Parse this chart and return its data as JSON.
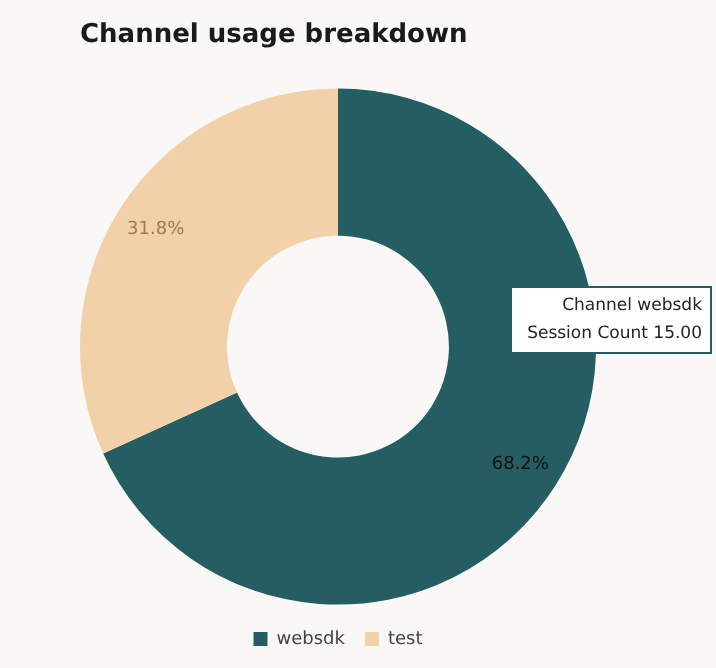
{
  "chart_data": {
    "type": "donut",
    "title": "Channel usage breakdown",
    "categories": [
      "websdk",
      "test"
    ],
    "values": [
      68.2,
      31.8
    ],
    "colors": [
      "#245e63",
      "#f3d1a8"
    ],
    "value_labels": [
      "68.2%",
      "31.8%"
    ],
    "legend": "bottom",
    "annotations": [
      "Channel websdk",
      "Session Count 15.00"
    ]
  }
}
